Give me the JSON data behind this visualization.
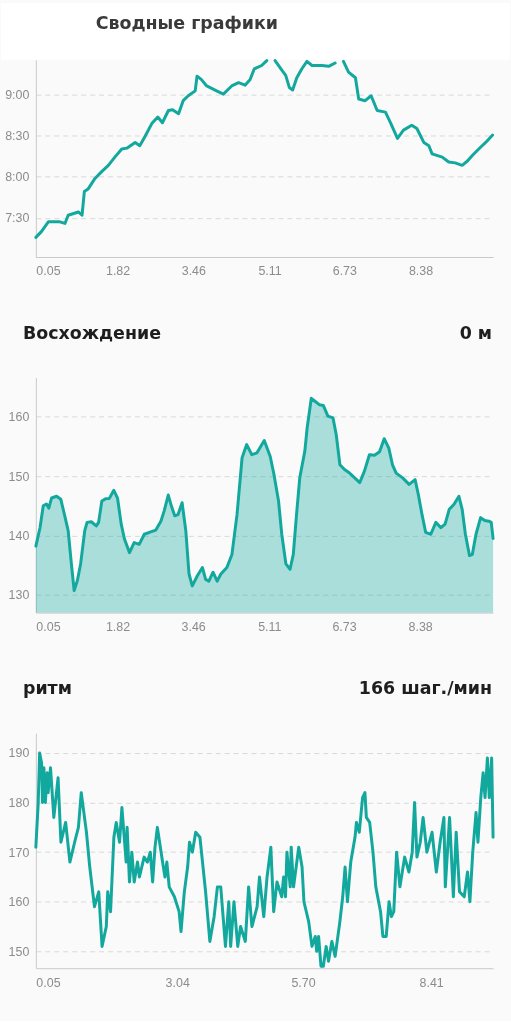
{
  "chart_data": [
    {
      "type": "line",
      "title": "Сводные графики",
      "x": [
        0.05,
        0.17,
        0.32,
        0.57,
        0.68,
        0.75,
        0.97,
        1.05,
        1.1,
        1.18,
        1.33,
        1.47,
        1.62,
        1.76,
        1.91,
        2.02,
        2.2,
        2.3,
        2.41,
        2.56,
        2.69,
        2.79,
        2.92,
        3.01,
        3.14,
        3.24,
        3.35,
        3.5,
        3.54,
        3.63,
        3.75,
        3.93,
        4.11,
        4.29,
        4.44,
        4.58,
        4.69,
        4.78,
        4.94,
        5.05,
        5.15,
        5.23,
        5.38,
        5.46,
        5.54,
        5.61,
        5.7,
        5.81,
        5.92,
        6.03,
        6.24,
        6.39,
        6.53,
        6.64,
        6.71,
        6.82,
        6.97,
        7.04,
        7.18,
        7.31,
        7.44,
        7.62,
        7.73,
        7.88,
        8.01,
        8.19,
        8.3,
        8.45,
        8.56,
        8.63,
        8.85,
        8.99,
        9.13,
        9.28,
        9.39,
        9.5,
        9.64,
        9.79,
        9.94
      ],
      "series": [
        {
          "color": "#13a89e",
          "values": [
            7.26,
            7.33,
            7.45,
            7.45,
            7.43,
            7.53,
            7.57,
            7.53,
            7.82,
            7.85,
            7.98,
            8.06,
            8.14,
            8.24,
            8.34,
            8.35,
            8.42,
            8.38,
            8.49,
            8.65,
            8.73,
            8.66,
            8.81,
            8.82,
            8.77,
            8.93,
            8.99,
            9.05,
            9.23,
            9.19,
            9.11,
            9.06,
            9.01,
            9.11,
            9.15,
            9.12,
            9.19,
            9.32,
            9.36,
            9.42,
            null,
            9.42,
            9.3,
            9.24,
            9.09,
            9.06,
            9.21,
            9.32,
            9.41,
            9.36,
            9.36,
            9.35,
            9.39,
            null,
            9.41,
            9.28,
            9.21,
            8.95,
            8.93,
            8.99,
            8.81,
            8.79,
            8.66,
            8.47,
            8.57,
            8.63,
            8.59,
            8.42,
            8.38,
            8.28,
            8.24,
            8.18,
            8.17,
            8.14,
            8.19,
            8.26,
            8.34,
            8.42,
            8.51
          ]
        }
      ],
      "xlim": [
        0.05,
        9.95
      ],
      "xticks": [
        0.05,
        1.82,
        3.46,
        5.11,
        6.73,
        8.38
      ],
      "ylim": [
        7.02,
        9.43
      ],
      "yticks": [
        {
          "value": 7.5,
          "label": "7:30"
        },
        {
          "value": 8,
          "label": "8:00"
        },
        {
          "value": 8.5,
          "label": "8:30"
        },
        {
          "value": 9,
          "label": "9:00"
        }
      ],
      "grid": "y"
    },
    {
      "type": "area",
      "title": "Восхождение",
      "annotations": [
        "0 м"
      ],
      "x": [
        0.05,
        0.14,
        0.21,
        0.28,
        0.33,
        0.39,
        0.5,
        0.59,
        0.67,
        0.75,
        0.82,
        0.88,
        0.95,
        1.02,
        1.11,
        1.16,
        1.25,
        1.36,
        1.41,
        1.48,
        1.57,
        1.64,
        1.74,
        1.82,
        1.9,
        1.97,
        2.08,
        2.18,
        2.29,
        2.4,
        2.54,
        2.65,
        2.76,
        2.83,
        2.92,
        2.99,
        3.06,
        3.13,
        3.22,
        3.3,
        3.37,
        3.44,
        3.55,
        3.66,
        3.73,
        3.8,
        3.89,
        3.98,
        4.06,
        4.19,
        4.3,
        4.41,
        4.52,
        4.62,
        4.73,
        4.84,
        5.0,
        5.13,
        5.21,
        5.31,
        5.38,
        5.47,
        5.56,
        5.63,
        5.7,
        5.77,
        5.88,
        5.93,
        6.02,
        6.1,
        6.2,
        6.28,
        6.38,
        6.49,
        6.56,
        6.64,
        6.74,
        6.85,
        6.96,
        7.07,
        7.17,
        7.28,
        7.39,
        7.5,
        7.6,
        7.7,
        7.78,
        7.86,
        8.0,
        8.14,
        8.27,
        8.34,
        8.42,
        8.5,
        8.61,
        8.72,
        8.83,
        8.92,
        9.01,
        9.11,
        9.22,
        9.29,
        9.36,
        9.45,
        9.51,
        9.59,
        9.69,
        9.78,
        9.87,
        9.92,
        9.96
      ],
      "series": [
        {
          "color": "#13a89e",
          "values": [
            138.2,
            141.3,
            145.0,
            145.3,
            144.6,
            146.3,
            146.6,
            146.1,
            143.5,
            140.8,
            135.2,
            130.7,
            132.4,
            135.2,
            140.8,
            142.2,
            142.3,
            141.6,
            142.2,
            145.8,
            146.2,
            146.2,
            147.6,
            146.3,
            141.9,
            139.4,
            137.1,
            138.8,
            138.5,
            140.2,
            140.6,
            140.9,
            142.4,
            144.1,
            146.8,
            144.9,
            143.3,
            143.5,
            145.5,
            140.8,
            133.5,
            131.5,
            133.2,
            134.6,
            132.6,
            132.3,
            133.8,
            132.3,
            133.5,
            134.6,
            136.8,
            143.5,
            153.1,
            155.3,
            153.6,
            153.9,
            156.0,
            153.3,
            150.3,
            145.8,
            140.2,
            135.2,
            134.3,
            136.8,
            143.5,
            149.7,
            154.2,
            158.1,
            163.1,
            162.6,
            162.0,
            161.9,
            160.1,
            159.8,
            157.0,
            151.9,
            151.1,
            150.5,
            149.7,
            148.9,
            150.8,
            153.6,
            153.5,
            154.1,
            156.3,
            154.7,
            151.9,
            150.5,
            149.7,
            148.6,
            149.4,
            146.9,
            143.5,
            140.5,
            140.2,
            142.2,
            141.3,
            141.9,
            144.4,
            145.2,
            146.6,
            144.4,
            140.2,
            136.6,
            136.8,
            140.2,
            143.0,
            142.5,
            142.4,
            142.2,
            139.5
          ]
        }
      ],
      "xlim": [
        0.05,
        9.96
      ],
      "xticks": [
        0.05,
        1.82,
        3.46,
        5.11,
        6.73,
        8.38
      ],
      "ylim": [
        127,
        166.6
      ],
      "yticks": [
        130,
        140,
        150,
        160
      ],
      "grid": "y"
    },
    {
      "type": "line",
      "title": "ритм",
      "annotations": [
        "166 шаг./мин"
      ],
      "x": [
        0.05,
        0.1,
        0.13,
        0.17,
        0.19,
        0.22,
        0.25,
        0.29,
        0.31,
        0.36,
        0.43,
        0.52,
        0.58,
        0.68,
        0.77,
        0.87,
        0.95,
        1.01,
        1.12,
        1.19,
        1.29,
        1.38,
        1.45,
        1.54,
        1.57,
        1.63,
        1.7,
        1.75,
        1.82,
        1.87,
        1.96,
        1.98,
        2.03,
        2.08,
        2.13,
        2.2,
        2.24,
        2.34,
        2.41,
        2.47,
        2.52,
        2.57,
        2.62,
        2.73,
        2.78,
        2.82,
        2.87,
        2.98,
        3.08,
        3.12,
        3.19,
        3.26,
        3.3,
        3.36,
        3.43,
        3.52,
        3.64,
        3.73,
        3.82,
        3.89,
        3.96,
        4.06,
        4.13,
        4.17,
        4.24,
        4.32,
        4.38,
        4.48,
        4.55,
        4.62,
        4.73,
        4.78,
        4.87,
        4.94,
        5.02,
        5.08,
        5.15,
        5.25,
        5.29,
        5.33,
        5.36,
        5.43,
        5.45,
        5.5,
        5.61,
        5.68,
        5.72,
        5.82,
        5.89,
        5.96,
        5.99,
        6.03,
        6.08,
        6.13,
        6.19,
        6.24,
        6.31,
        6.38,
        6.48,
        6.54,
        6.59,
        6.64,
        6.71,
        6.8,
        6.83,
        6.89,
        6.96,
        7.01,
        7.04,
        7.11,
        7.18,
        7.24,
        7.34,
        7.39,
        7.46,
        7.52,
        7.57,
        7.62,
        7.68,
        7.75,
        7.85,
        7.94,
        8.01,
        8.06,
        8.11,
        8.18,
        8.24,
        8.32,
        8.43,
        8.52,
        8.6,
        8.68,
        8.71,
        8.8,
        8.88,
        8.94,
        9.01,
        9.11,
        9.18,
        9.23,
        9.29,
        9.36,
        9.4,
        9.46,
        9.51,
        9.55,
        9.6,
        9.64,
        9.69,
        9.72
      ],
      "series": [
        {
          "color": "#13a89e",
          "values": [
            171,
            180,
            190,
            188,
            180,
            187,
            180,
            186,
            182,
            187,
            177,
            185,
            172,
            176,
            168,
            172,
            175,
            182,
            174,
            167,
            159,
            162,
            151,
            155,
            162,
            158,
            173,
            176,
            172,
            179,
            168,
            175,
            164,
            170,
            164,
            168,
            165,
            169,
            168,
            170,
            164,
            171,
            175,
            168,
            165,
            168,
            163,
            161,
            158,
            154,
            162,
            167,
            172,
            170,
            174,
            173,
            162,
            152,
            157,
            163,
            163,
            151,
            160,
            151,
            160,
            151,
            155,
            152,
            163,
            155,
            159,
            165,
            157,
            165,
            171,
            158,
            164,
            161,
            165,
            161,
            170,
            163,
            171,
            163,
            171,
            167,
            160,
            156,
            151,
            153,
            150,
            153,
            147,
            147,
            151,
            148,
            152,
            149,
            156,
            161,
            167,
            160,
            168,
            173,
            176,
            174,
            181,
            182,
            177,
            176,
            170,
            163,
            158,
            153,
            153,
            160,
            157,
            158,
            170,
            163,
            169,
            166,
            170,
            180,
            169,
            172,
            177,
            170,
            174,
            166,
            172,
            177,
            163,
            177,
            161,
            174,
            162,
            161,
            166,
            160,
            170,
            178,
            172,
            181,
            186,
            181,
            189,
            181,
            189,
            173
          ]
        }
      ],
      "xlim": [
        0.05,
        9.72
      ],
      "xticks": [
        0.05,
        3.04,
        {
          "value": 5.7,
          "label": "5.70"
        },
        8.41
      ],
      "ylim": [
        146.6,
        194.0
      ],
      "yticks": [
        150,
        160,
        170,
        180,
        190
      ],
      "grid": "y"
    }
  ]
}
